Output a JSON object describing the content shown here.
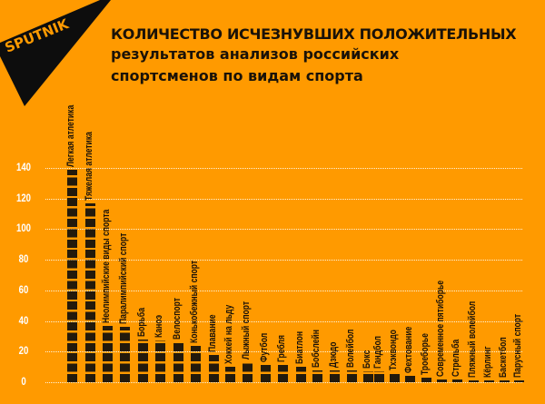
{
  "brand": {
    "logo_text": "SPUTNIK"
  },
  "header": {
    "title_line1": "КОЛИЧЕСТВО ИСЧЕЗНУВШИХ ПОЛОЖИТЕЛЬНЫХ",
    "title_line2": "результатов анализов российских",
    "title_line3": "спортсменов по видам спорта"
  },
  "colors": {
    "background": "#ff9a00",
    "bar": "#231a0c",
    "axis_text": "#ffffff",
    "grid": "#fff4dd"
  },
  "chart_data": {
    "type": "bar",
    "title": "КОЛИЧЕСТВО ИСЧЕЗНУВШИХ ПОЛОЖИТЕЛЬНЫХ результатов анализов российских спортсменов по видам спорта",
    "ylim": [
      0,
      140
    ],
    "yticks": [
      "0",
      "20",
      "40",
      "60",
      "80",
      "100",
      "120",
      "140"
    ],
    "grid": true,
    "categories": [
      "Легкая атлетика",
      "Тяжелая атлетика",
      "Неолимпийские виды спорта",
      "Паралимпийский спорт",
      "Борьба",
      "Каноэ",
      "Велоспорт",
      "Конькобежный спорт",
      "Плавание",
      "Хоккей на льду",
      "Лыжный спорт",
      "Футбол",
      "Гребля",
      "Биатлон",
      "Бобслейн",
      "Дзюдо",
      "Волейбол",
      "Бокс",
      "Гандбол",
      "Тхэквондо",
      "Фехтование",
      "Троеборье",
      "Современное пятиборье",
      "Стрельба",
      "Пляжный волейбол",
      "Кёрлинг",
      "Баскетбол",
      "Парусный спорт"
    ],
    "values": [
      139,
      117,
      37,
      36,
      28,
      27,
      26,
      24,
      18,
      10,
      13,
      11,
      11,
      10,
      8,
      8,
      8,
      7,
      7,
      6,
      4,
      3,
      2,
      2,
      1,
      1,
      1,
      1
    ]
  }
}
